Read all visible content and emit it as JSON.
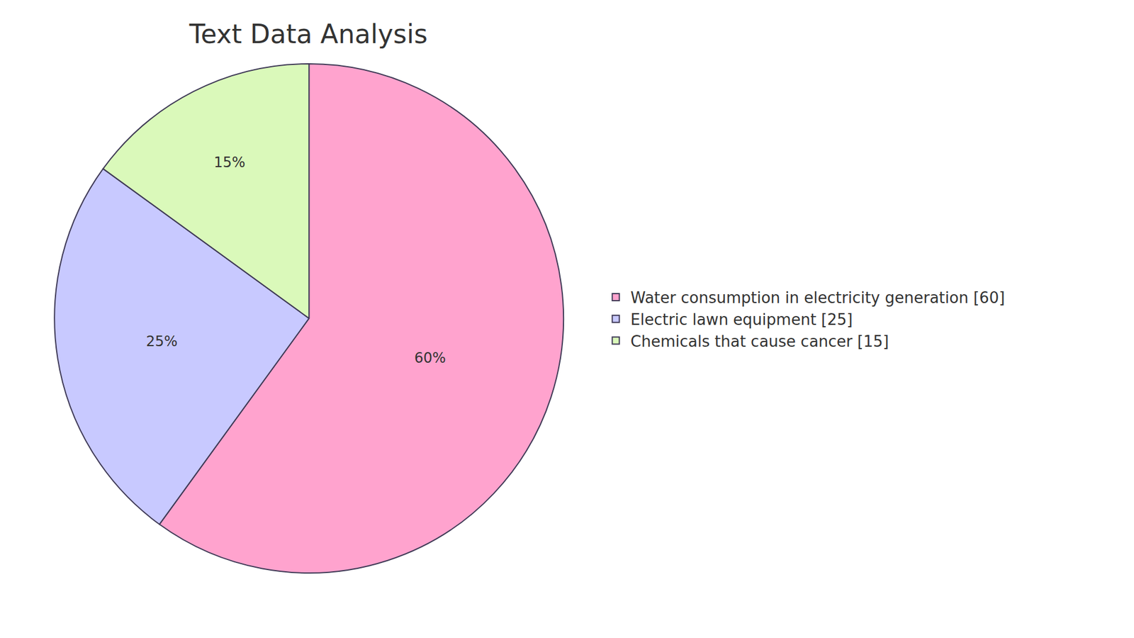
{
  "chart_data": {
    "type": "pie",
    "title": "Text Data Analysis",
    "categories": [
      "Water consumption in electricity generation [60]",
      "Electric lawn equipment [25]",
      "Chemicals that cause cancer [15]"
    ],
    "values": [
      60,
      25,
      15
    ],
    "value_labels": [
      "60%",
      "25%",
      "15%"
    ],
    "colors": [
      "#FFA3CE",
      "#C8C9FF",
      "#DAF9BA"
    ],
    "data_labels": true,
    "legend": "right"
  }
}
